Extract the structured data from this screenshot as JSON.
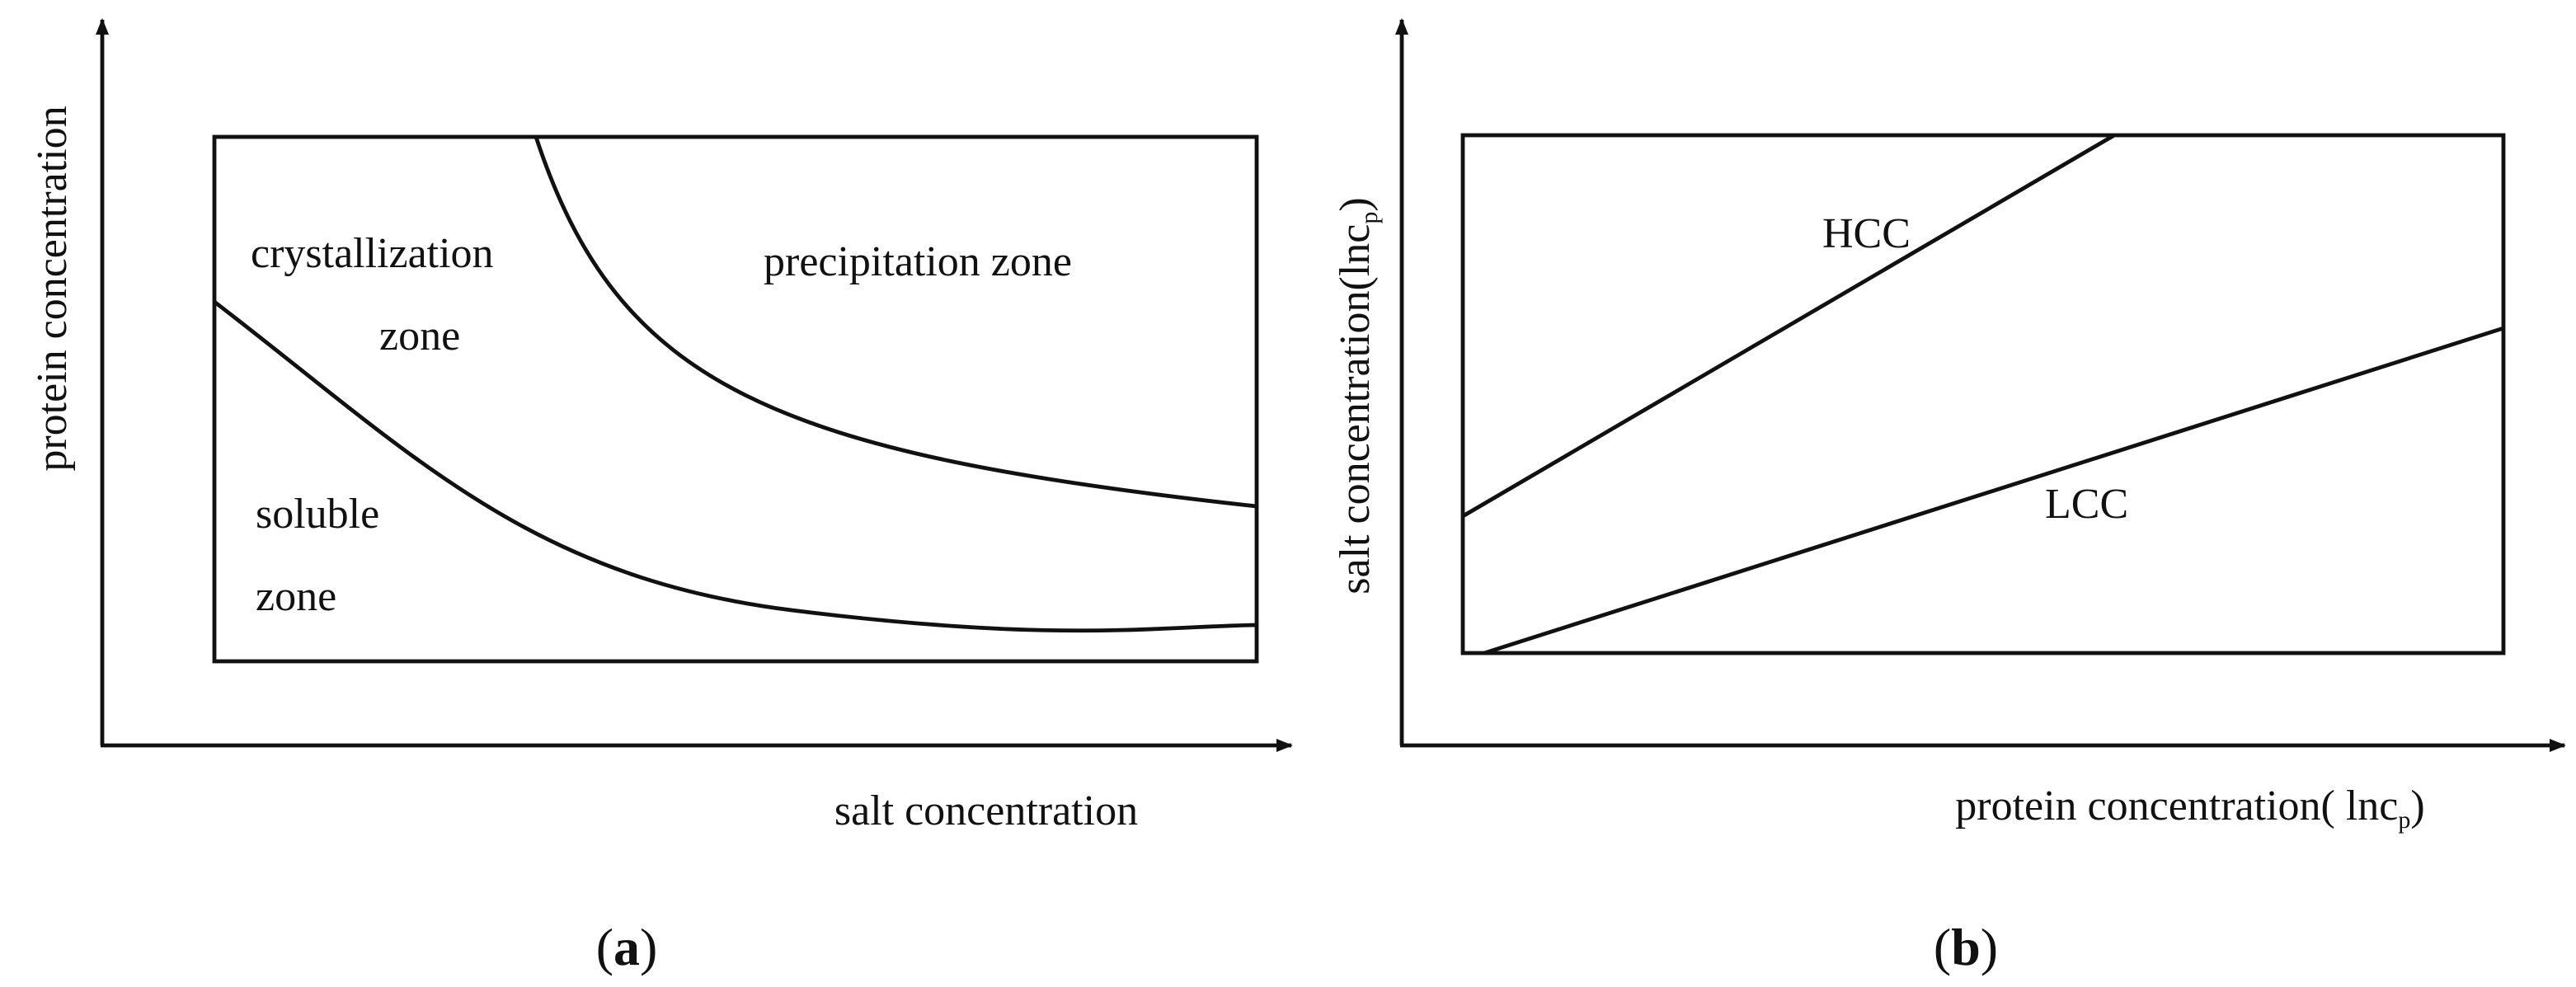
{
  "panel_a": {
    "y_label": "protein concentration",
    "x_label": "salt concentration",
    "zones": {
      "crystallization_1": "crystallization",
      "crystallization_2": "zone",
      "precipitation": "precipitation zone",
      "soluble_1": "soluble",
      "soluble_2": "zone"
    },
    "caption": {
      "open": "(",
      "letter": "a",
      "close": ")"
    }
  },
  "panel_b": {
    "y_label": {
      "main": "salt concentration(lnc",
      "sub": "p",
      "end": ")"
    },
    "x_label": {
      "main": "protein concentration( lnc",
      "sub": "p",
      "end": ")"
    },
    "lines": {
      "upper": "HCC",
      "lower": "LCC"
    },
    "caption": {
      "open": "(",
      "letter": "b",
      "close": ")"
    }
  }
}
